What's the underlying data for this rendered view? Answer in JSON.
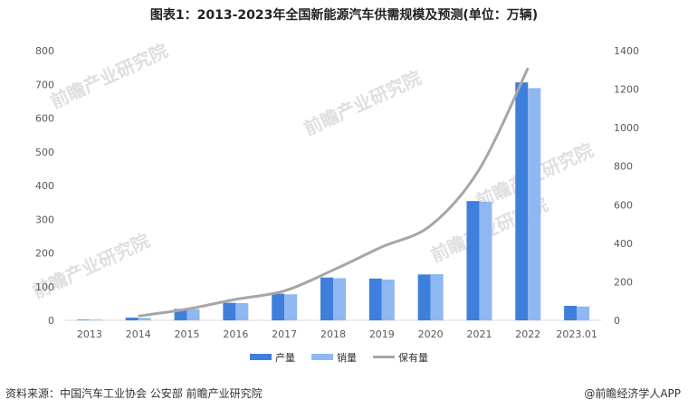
{
  "title": "图表1：2013-2023年全国新能源汽车供需规模及预测(单位：万辆)",
  "source": "资料来源：中国汽车工业协会 公安部 前瞻产业研究院",
  "brand": "@前瞻经济学人APP",
  "watermark": "前瞻产业研究院",
  "colors": {
    "production": "#3f7fdc",
    "sales": "#8fb8f2",
    "ownership": "#a6a6a6"
  },
  "chart_data": {
    "type": "bar",
    "title": "图表1：2013-2023年全国新能源汽车供需规模及预测(单位：万辆)",
    "categories": [
      "2013",
      "2014",
      "2015",
      "2016",
      "2017",
      "2018",
      "2019",
      "2020",
      "2021",
      "2022",
      "2023.01"
    ],
    "series": [
      {
        "name": "产量",
        "type": "bar",
        "axis": "left",
        "values": [
          2,
          8,
          34,
          52,
          79,
          127,
          124,
          136,
          354,
          706,
          43
        ]
      },
      {
        "name": "销量",
        "type": "bar",
        "axis": "left",
        "values": [
          2,
          7,
          33,
          51,
          77,
          125,
          121,
          137,
          352,
          689,
          41
        ]
      },
      {
        "name": "保有量",
        "type": "line",
        "axis": "right",
        "values": [
          null,
          22,
          58,
          109,
          153,
          261,
          381,
          492,
          784,
          1310,
          null
        ]
      }
    ],
    "yleft": {
      "ylim": [
        0,
        800
      ],
      "ticks": [
        0,
        100,
        200,
        300,
        400,
        500,
        600,
        700,
        800
      ]
    },
    "yright": {
      "ylim": [
        0,
        1400
      ],
      "ticks": [
        0,
        200,
        400,
        600,
        800,
        1000,
        1200,
        1400
      ]
    },
    "legend": {
      "placement": "bottom-center",
      "items": [
        "产量",
        "销量",
        "保有量"
      ]
    }
  }
}
